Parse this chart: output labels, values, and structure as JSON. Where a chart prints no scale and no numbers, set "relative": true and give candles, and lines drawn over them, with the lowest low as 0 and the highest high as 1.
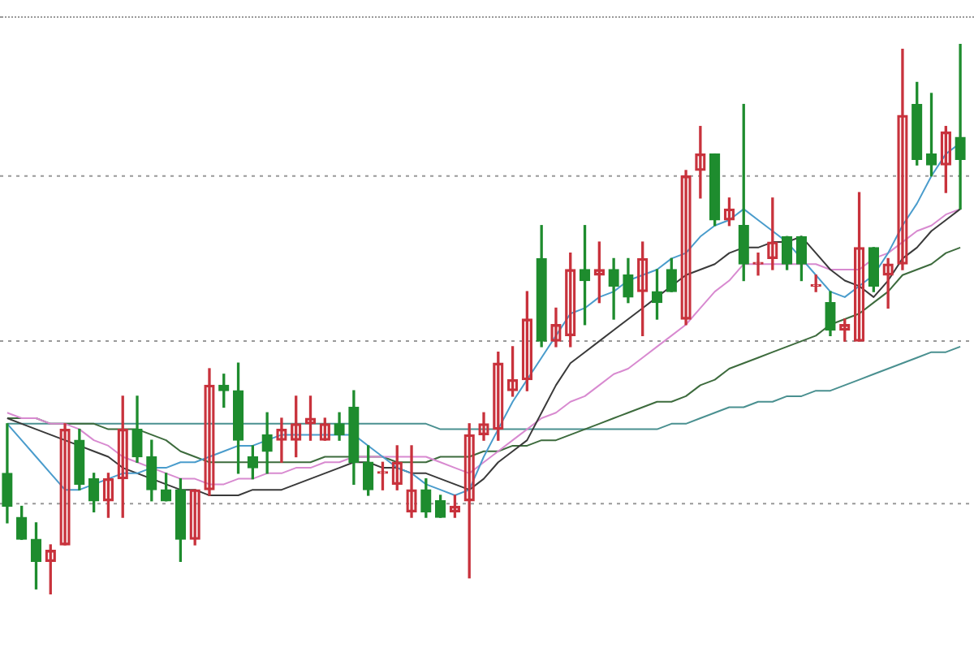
{
  "chart_data": {
    "type": "candlestick",
    "relative": true,
    "marker": "none",
    "line_style": "solid",
    "ref_lines": [
      {
        "axis": "y",
        "value": 0.76,
        "color": "#999999",
        "line_style": "dotted"
      },
      {
        "axis": "y",
        "value": 0.46,
        "color": "#999999",
        "line_style": "dotted"
      },
      {
        "axis": "y",
        "value": 0.165,
        "color": "#999999",
        "line_style": "dotted"
      }
    ],
    "categories": [
      null,
      null,
      null,
      null,
      null,
      null,
      null,
      null,
      null,
      null,
      null,
      null,
      null,
      null,
      null,
      null,
      null,
      null,
      null,
      null,
      null,
      null,
      null,
      null,
      null,
      null,
      null,
      null,
      null,
      null,
      null,
      null,
      null,
      null,
      null,
      null,
      null,
      null,
      null,
      null,
      null,
      null,
      null,
      null,
      null,
      null,
      null,
      null,
      null,
      null,
      null,
      null,
      null,
      null,
      null,
      null,
      null,
      null,
      null,
      null,
      null,
      null,
      null,
      null,
      null,
      null,
      null
    ],
    "ohlc": [
      [
        0.22,
        0.31,
        0.13,
        0.16
      ],
      [
        0.14,
        0.16,
        0.1,
        0.1
      ],
      [
        0.1,
        0.13,
        0.01,
        0.06
      ],
      [
        0.06,
        0.09,
        0.0,
        0.08
      ],
      [
        0.09,
        0.31,
        0.09,
        0.3
      ],
      [
        0.28,
        0.3,
        0.19,
        0.2
      ],
      [
        0.21,
        0.22,
        0.15,
        0.17
      ],
      [
        0.17,
        0.22,
        0.14,
        0.21
      ],
      [
        0.21,
        0.36,
        0.14,
        0.3
      ],
      [
        0.3,
        0.36,
        0.24,
        0.25
      ],
      [
        0.25,
        0.28,
        0.17,
        0.19
      ],
      [
        0.19,
        0.22,
        0.17,
        0.17
      ],
      [
        0.19,
        0.21,
        0.06,
        0.1
      ],
      [
        0.1,
        0.19,
        0.09,
        0.19
      ],
      [
        0.19,
        0.41,
        0.18,
        0.38
      ],
      [
        0.38,
        0.4,
        0.34,
        0.37
      ],
      [
        0.37,
        0.42,
        0.22,
        0.28
      ],
      [
        0.25,
        0.27,
        0.21,
        0.23
      ],
      [
        0.29,
        0.33,
        0.22,
        0.26
      ],
      [
        0.28,
        0.32,
        0.24,
        0.3
      ],
      [
        0.28,
        0.36,
        0.25,
        0.31
      ],
      [
        0.31,
        0.36,
        0.28,
        0.32
      ],
      [
        0.28,
        0.32,
        0.28,
        0.31
      ],
      [
        0.31,
        0.33,
        0.28,
        0.29
      ],
      [
        0.34,
        0.37,
        0.2,
        0.24
      ],
      [
        0.24,
        0.27,
        0.18,
        0.19
      ],
      [
        0.22,
        0.24,
        0.19,
        0.22
      ],
      [
        0.2,
        0.27,
        0.19,
        0.24
      ],
      [
        0.15,
        0.27,
        0.14,
        0.19
      ],
      [
        0.19,
        0.21,
        0.14,
        0.15
      ],
      [
        0.17,
        0.18,
        0.14,
        0.14
      ],
      [
        0.15,
        0.18,
        0.14,
        0.16
      ],
      [
        0.17,
        0.31,
        0.03,
        0.29
      ],
      [
        0.29,
        0.33,
        0.28,
        0.31
      ],
      [
        0.3,
        0.44,
        0.28,
        0.42
      ],
      [
        0.37,
        0.45,
        0.36,
        0.39
      ],
      [
        0.39,
        0.55,
        0.37,
        0.5
      ],
      [
        0.61,
        0.67,
        0.45,
        0.46
      ],
      [
        0.46,
        0.52,
        0.45,
        0.49
      ],
      [
        0.47,
        0.62,
        0.45,
        0.59
      ],
      [
        0.59,
        0.67,
        0.49,
        0.57
      ],
      [
        0.58,
        0.64,
        0.53,
        0.59
      ],
      [
        0.59,
        0.61,
        0.5,
        0.56
      ],
      [
        0.58,
        0.61,
        0.53,
        0.54
      ],
      [
        0.55,
        0.64,
        0.47,
        0.61
      ],
      [
        0.55,
        0.59,
        0.5,
        0.53
      ],
      [
        0.59,
        0.61,
        0.55,
        0.55
      ],
      [
        0.5,
        0.77,
        0.49,
        0.76
      ],
      [
        0.77,
        0.85,
        0.72,
        0.8
      ],
      [
        0.8,
        0.8,
        0.67,
        0.68
      ],
      [
        0.68,
        0.72,
        0.67,
        0.7
      ],
      [
        0.67,
        0.89,
        0.57,
        0.6
      ],
      [
        0.6,
        0.62,
        0.58,
        0.6
      ],
      [
        0.61,
        0.72,
        0.59,
        0.64
      ],
      [
        0.65,
        0.65,
        0.59,
        0.6
      ],
      [
        0.65,
        0.65,
        0.57,
        0.6
      ],
      [
        0.56,
        0.58,
        0.55,
        0.56
      ],
      [
        0.53,
        0.55,
        0.47,
        0.48
      ],
      [
        0.48,
        0.5,
        0.46,
        0.49
      ],
      [
        0.46,
        0.73,
        0.46,
        0.63
      ],
      [
        0.63,
        0.63,
        0.55,
        0.56
      ],
      [
        0.58,
        0.61,
        0.52,
        0.6
      ],
      [
        0.6,
        0.99,
        0.59,
        0.87
      ],
      [
        0.89,
        0.93,
        0.78,
        0.79
      ],
      [
        0.8,
        0.91,
        0.76,
        0.78
      ],
      [
        0.78,
        0.85,
        0.73,
        0.84
      ],
      [
        0.83,
        1,
        0.7,
        0.79
      ]
    ],
    "series": [
      {
        "type": "line",
        "color": "#4a9ccc",
        "values": [
          0.31,
          0.28,
          0.25,
          0.22,
          0.19,
          0.19,
          0.2,
          0.21,
          0.22,
          0.22,
          0.23,
          0.23,
          0.24,
          0.24,
          0.25,
          0.26,
          0.27,
          0.27,
          0.28,
          0.29,
          0.29,
          0.29,
          0.29,
          0.29,
          0.29,
          0.27,
          0.25,
          0.23,
          0.22,
          0.2,
          0.19,
          0.18,
          0.19,
          0.25,
          0.3,
          0.35,
          0.39,
          0.43,
          0.47,
          0.51,
          0.52,
          0.54,
          0.55,
          0.57,
          0.58,
          0.59,
          0.61,
          0.62,
          0.65,
          0.67,
          0.68,
          0.7,
          0.68,
          0.66,
          0.64,
          0.61,
          0.58,
          0.55,
          0.54,
          0.56,
          0.58,
          0.62,
          0.67,
          0.71,
          0.76,
          0.8,
          0.82
        ]
      },
      {
        "type": "line",
        "color": "#3a3a3a",
        "values": [
          0.32,
          0.31,
          0.3,
          0.29,
          0.28,
          0.27,
          0.26,
          0.25,
          0.23,
          0.22,
          0.21,
          0.2,
          0.19,
          0.19,
          0.18,
          0.18,
          0.18,
          0.19,
          0.19,
          0.19,
          0.2,
          0.21,
          0.22,
          0.23,
          0.24,
          0.24,
          0.23,
          0.23,
          0.22,
          0.22,
          0.21,
          0.2,
          0.19,
          0.21,
          0.24,
          0.26,
          0.28,
          0.33,
          0.38,
          0.42,
          0.44,
          0.46,
          0.48,
          0.5,
          0.52,
          0.54,
          0.56,
          0.58,
          0.59,
          0.6,
          0.62,
          0.63,
          0.63,
          0.64,
          0.64,
          0.65,
          0.62,
          0.59,
          0.57,
          0.56,
          0.54,
          0.57,
          0.61,
          0.63,
          0.66,
          0.68,
          0.7
        ]
      },
      {
        "type": "line",
        "color": "#d88ad0",
        "values": [
          0.33,
          0.32,
          0.32,
          0.31,
          0.31,
          0.3,
          0.28,
          0.27,
          0.25,
          0.24,
          0.23,
          0.22,
          0.21,
          0.21,
          0.2,
          0.2,
          0.21,
          0.21,
          0.22,
          0.22,
          0.23,
          0.23,
          0.24,
          0.24,
          0.25,
          0.25,
          0.25,
          0.25,
          0.25,
          0.25,
          0.24,
          0.23,
          0.22,
          0.24,
          0.26,
          0.28,
          0.3,
          0.32,
          0.33,
          0.35,
          0.36,
          0.38,
          0.4,
          0.41,
          0.43,
          0.45,
          0.47,
          0.49,
          0.52,
          0.55,
          0.57,
          0.6,
          0.6,
          0.6,
          0.6,
          0.6,
          0.6,
          0.59,
          0.59,
          0.59,
          0.61,
          0.62,
          0.64,
          0.66,
          0.67,
          0.69,
          0.7
        ]
      },
      {
        "type": "line",
        "color": "#3d6b3d",
        "values": [
          0.32,
          0.32,
          0.32,
          0.31,
          0.31,
          0.31,
          0.31,
          0.3,
          0.3,
          0.3,
          0.29,
          0.28,
          0.26,
          0.25,
          0.24,
          0.24,
          0.24,
          0.24,
          0.24,
          0.24,
          0.24,
          0.24,
          0.25,
          0.25,
          0.25,
          0.25,
          0.25,
          0.24,
          0.24,
          0.24,
          0.25,
          0.25,
          0.25,
          0.26,
          0.26,
          0.27,
          0.27,
          0.28,
          0.28,
          0.29,
          0.3,
          0.31,
          0.32,
          0.33,
          0.34,
          0.35,
          0.35,
          0.36,
          0.38,
          0.39,
          0.41,
          0.42,
          0.43,
          0.44,
          0.45,
          0.46,
          0.47,
          0.49,
          0.5,
          0.51,
          0.53,
          0.55,
          0.58,
          0.59,
          0.6,
          0.62,
          0.63
        ]
      },
      {
        "type": "line",
        "color": "#4a9090",
        "values": [
          0.31,
          0.31,
          0.31,
          0.31,
          0.31,
          0.31,
          0.31,
          0.31,
          0.31,
          0.31,
          0.31,
          0.31,
          0.31,
          0.31,
          0.31,
          0.31,
          0.31,
          0.31,
          0.31,
          0.31,
          0.31,
          0.31,
          0.31,
          0.31,
          0.31,
          0.31,
          0.31,
          0.31,
          0.31,
          0.31,
          0.3,
          0.3,
          0.3,
          0.3,
          0.3,
          0.3,
          0.3,
          0.3,
          0.3,
          0.3,
          0.3,
          0.3,
          0.3,
          0.3,
          0.3,
          0.3,
          0.31,
          0.31,
          0.32,
          0.33,
          0.34,
          0.34,
          0.35,
          0.35,
          0.36,
          0.36,
          0.37,
          0.37,
          0.38,
          0.39,
          0.4,
          0.41,
          0.42,
          0.43,
          0.44,
          0.44,
          0.45
        ]
      }
    ]
  }
}
